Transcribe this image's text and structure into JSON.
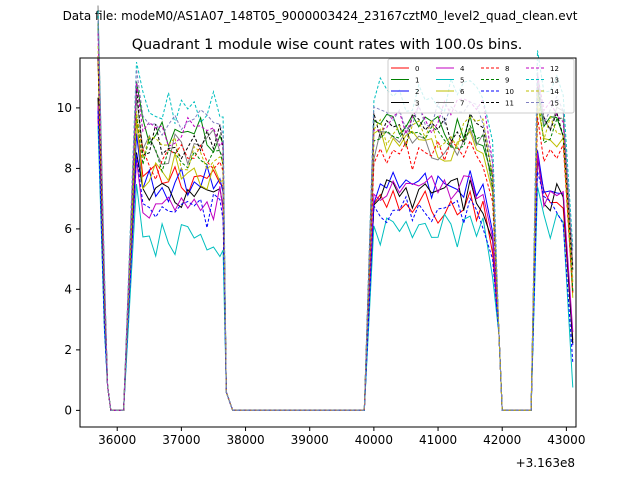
{
  "suptitle": "Data file: modeM0/AS1A07_148T05_9000003424_23167cztM0_level2_quad_clean.evt",
  "chart_data": {
    "type": "line",
    "title": "Quadrant 1 module wise count rates with 100.0s bins.",
    "xlabel": "",
    "ylabel": "",
    "x_offset_label": "+3.163e8",
    "xlim": [
      35420,
      43150
    ],
    "ylim": [
      -0.55,
      11.65
    ],
    "xticks": [
      36000,
      37000,
      38000,
      39000,
      40000,
      41000,
      42000,
      43000
    ],
    "xtick_labels": [
      "36000",
      "37000",
      "38000",
      "39000",
      "40000",
      "41000",
      "42000",
      "43000"
    ],
    "yticks": [
      0,
      2,
      4,
      6,
      8,
      10
    ],
    "ytick_labels": [
      "0",
      "2",
      "4",
      "6",
      "8",
      "10"
    ],
    "grid": false,
    "legend_placement": "upper right",
    "legend_columns": 4,
    "segments": [
      {
        "x_start": 35700,
        "x_end": 35800
      },
      {
        "x_start": 36300,
        "x_end": 37650
      },
      {
        "x_start": 40000,
        "x_end": 41850
      },
      {
        "x_start": 42550,
        "x_end": 43050
      }
    ],
    "zero_ranges": [
      [
        35900,
        36100
      ],
      [
        37800,
        39850
      ],
      [
        42000,
        42450
      ]
    ],
    "series": [
      {
        "name": "0",
        "color": "#ff0000",
        "dashed": false,
        "base": [
          6.4,
          7.7,
          6.7,
          7.0
        ]
      },
      {
        "name": "1",
        "color": "#008000",
        "dashed": false,
        "base": [
          9.4,
          9.1,
          9.2,
          9.3
        ]
      },
      {
        "name": "2",
        "color": "#0000ff",
        "dashed": false,
        "base": [
          6.6,
          7.5,
          7.4,
          7.3
        ]
      },
      {
        "name": "3",
        "color": "#000000",
        "dashed": false,
        "base": [
          6.9,
          7.0,
          7.1,
          7.1
        ]
      },
      {
        "name": "4",
        "color": "#c000c0",
        "dashed": false,
        "base": [
          6.6,
          6.9,
          7.2,
          7.2
        ]
      },
      {
        "name": "5",
        "color": "#00bfbf",
        "dashed": false,
        "base": [
          5.9,
          5.6,
          5.9,
          6.1
        ]
      },
      {
        "name": "6",
        "color": "#bfbf00",
        "dashed": false,
        "base": [
          8.0,
          7.9,
          8.7,
          8.8
        ]
      },
      {
        "name": "7",
        "color": "#808080",
        "dashed": false,
        "base": [
          9.8,
          8.7,
          8.8,
          9.6
        ]
      },
      {
        "name": "8",
        "color": "#ff0000",
        "dashed": true,
        "base": [
          8.1,
          8.2,
          8.4,
          8.4
        ]
      },
      {
        "name": "9",
        "color": "#008000",
        "dashed": true,
        "base": [
          9.2,
          8.4,
          8.9,
          9.2
        ]
      },
      {
        "name": "10",
        "color": "#0000ff",
        "dashed": true,
        "base": [
          6.2,
          6.6,
          6.5,
          6.6
        ]
      },
      {
        "name": "11",
        "color": "#000000",
        "dashed": true,
        "base": [
          8.9,
          8.9,
          9.3,
          9.4
        ]
      },
      {
        "name": "12",
        "color": "#c000c0",
        "dashed": true,
        "base": [
          9.7,
          9.2,
          9.7,
          9.8
        ]
      },
      {
        "name": "13",
        "color": "#00bfbf",
        "dashed": true,
        "base": [
          10.4,
          10.0,
          10.4,
          10.6
        ]
      },
      {
        "name": "14",
        "color": "#bfbf00",
        "dashed": true,
        "base": [
          9.2,
          8.5,
          9.2,
          9.2
        ]
      },
      {
        "name": "15",
        "color": "#8080c0",
        "dashed": true,
        "base": [
          10.0,
          9.4,
          9.7,
          9.9
        ]
      }
    ]
  }
}
